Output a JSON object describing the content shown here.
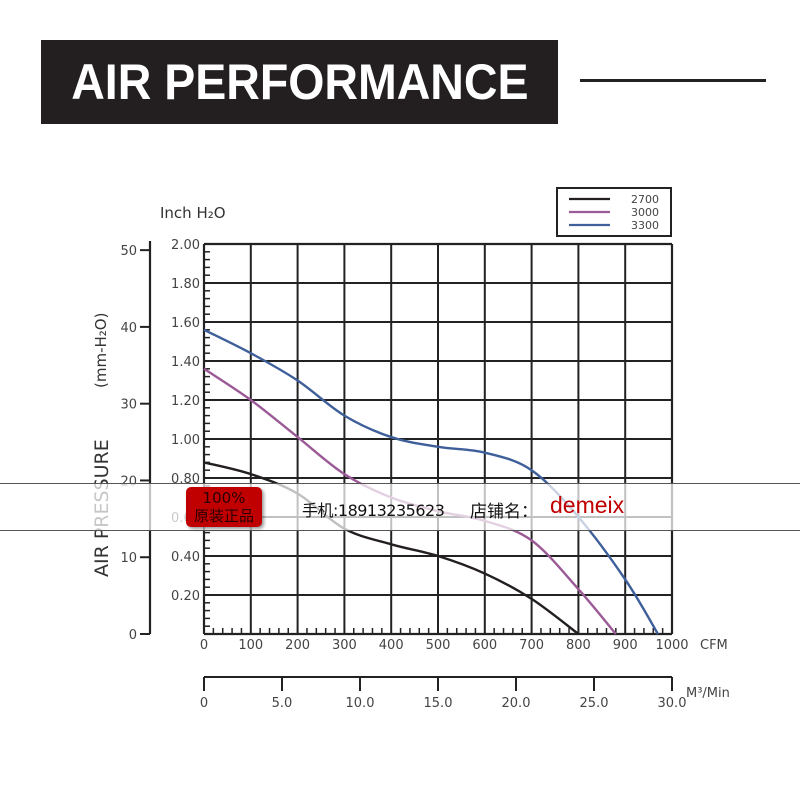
{
  "header": {
    "title": "AIR PERFORMANCE"
  },
  "chart_data": {
    "type": "line",
    "title": "AIR PERFORMANCE",
    "xlabel": "CFM",
    "xlabel_secondary": "M³/Min",
    "ylabel": "AIR PRESSURE (mm-H₂O)",
    "ylabel_secondary": "Inch H₂O",
    "xlim": [
      0,
      1000
    ],
    "ylim": [
      0,
      2.0
    ],
    "x_ticks": [
      "0",
      "100",
      "200",
      "300",
      "400",
      "500",
      "600",
      "700",
      "800",
      "900",
      "1000"
    ],
    "y_ticks_inch": [
      "0.20",
      "0.40",
      "0.60",
      "0.80",
      "1.00",
      "1.20",
      "1.40",
      "1.60",
      "1.80",
      "2.00"
    ],
    "y_ticks_mm": [
      "0",
      "10",
      "20",
      "30",
      "40",
      "50"
    ],
    "x2_ticks": [
      "0",
      "5.0",
      "10.0",
      "15.0",
      "20.0",
      "25.0",
      "30.0"
    ],
    "grid": true,
    "legend_position": "top-right",
    "x": [
      0,
      100,
      200,
      300,
      400,
      500,
      600,
      700,
      800,
      900,
      970
    ],
    "series": [
      {
        "name": "2700",
        "color": "#231f20",
        "points": [
          [
            0,
            0.88
          ],
          [
            100,
            0.82
          ],
          [
            200,
            0.72
          ],
          [
            300,
            0.54
          ],
          [
            400,
            0.46
          ],
          [
            500,
            0.4
          ],
          [
            600,
            0.31
          ],
          [
            700,
            0.18
          ],
          [
            800,
            0.0
          ]
        ]
      },
      {
        "name": "3000",
        "color": "#9b5a96",
        "points": [
          [
            0,
            1.36
          ],
          [
            100,
            1.2
          ],
          [
            200,
            1.01
          ],
          [
            300,
            0.82
          ],
          [
            400,
            0.7
          ],
          [
            500,
            0.63
          ],
          [
            600,
            0.58
          ],
          [
            700,
            0.48
          ],
          [
            800,
            0.23
          ],
          [
            880,
            0.0
          ]
        ]
      },
      {
        "name": "3300",
        "color": "#3e5f99",
        "points": [
          [
            0,
            1.56
          ],
          [
            100,
            1.44
          ],
          [
            200,
            1.3
          ],
          [
            300,
            1.12
          ],
          [
            400,
            1.01
          ],
          [
            500,
            0.96
          ],
          [
            600,
            0.93
          ],
          [
            700,
            0.84
          ],
          [
            800,
            0.6
          ],
          [
            900,
            0.28
          ],
          [
            970,
            0.0
          ]
        ]
      }
    ]
  },
  "watermark": {
    "badge_line1": "100%",
    "badge_line2": "原装正品",
    "phone": "手机:18913235623",
    "store_label": "店铺名：",
    "store_name": "demeix"
  }
}
